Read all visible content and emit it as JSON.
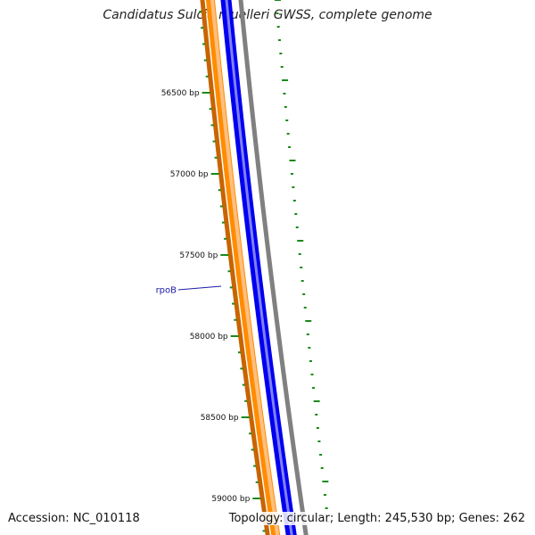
{
  "title": "Candidatus Sulcia muelleri GWSS, complete genome",
  "footer": {
    "accession": "Accession: NC_010118",
    "summary": "Topology: circular; Length: 245,530 bp; Genes: 262"
  },
  "ruler": {
    "ticks": [
      {
        "bp": 56500,
        "label": "56500 bp"
      },
      {
        "bp": 57000,
        "label": "57000 bp"
      },
      {
        "bp": 57500,
        "label": "57500 bp"
      },
      {
        "bp": 58000,
        "label": "58000 bp"
      },
      {
        "bp": 58500,
        "label": "58500 bp"
      },
      {
        "bp": 59000,
        "label": "59000 bp"
      }
    ],
    "tick_color": "#1a8a1a"
  },
  "genes": [
    {
      "name": "rpoB",
      "color": "#1a1aa6"
    }
  ],
  "track_colors": {
    "orange_outer": "#c86400",
    "orange": "#ff8c00",
    "orange_light": "#ffc080",
    "blue": "#0000ee",
    "blue_light": "#8080ff",
    "gray": "#808080",
    "gc_skew": "#1a8a1a"
  }
}
